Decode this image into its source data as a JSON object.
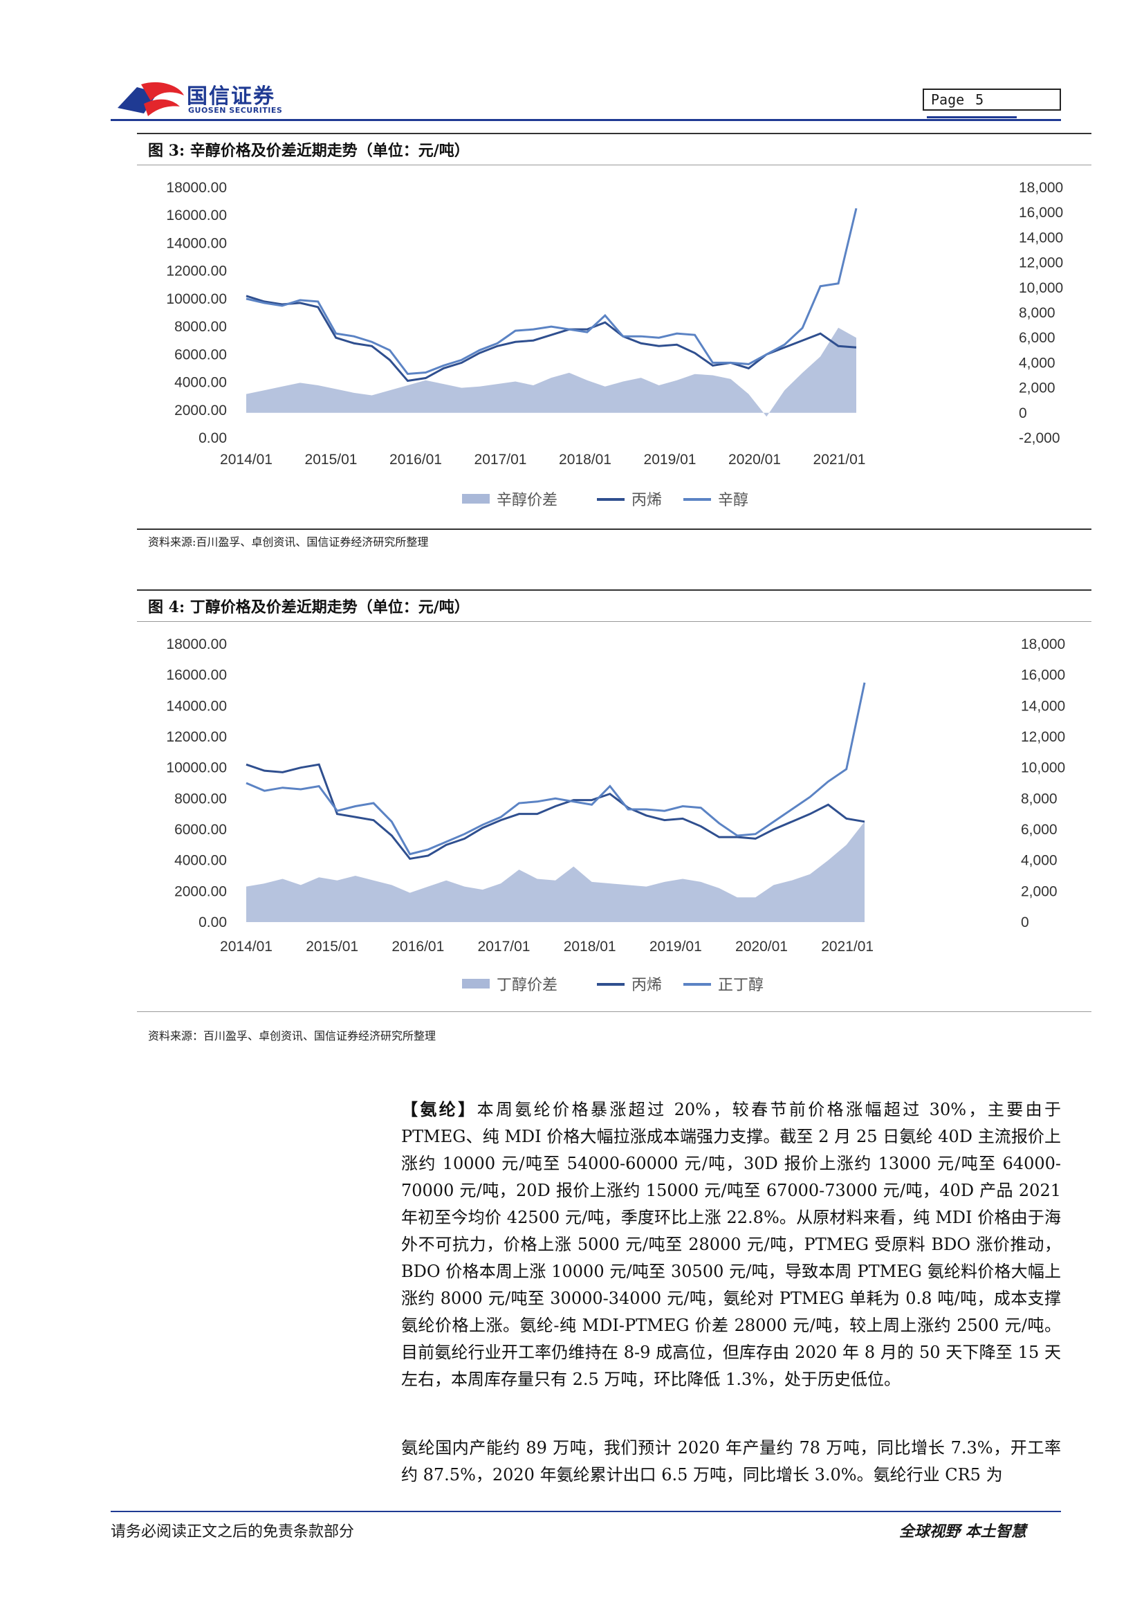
{
  "header": {
    "logo_cn": "国信证券",
    "logo_en": "GUOSEN SECURITIES",
    "page_label": "Page",
    "page_number": "5"
  },
  "figure3": {
    "title": "图 3:  辛醇价格及价差近期走势（单位：元/吨）",
    "source": "资料来源:百川盈孚、卓创资讯、国信证券经济研究所整理",
    "chart_data": {
      "type": "area+line",
      "x_ticks": [
        "2014/01",
        "2015/01",
        "2016/01",
        "2017/01",
        "2018/01",
        "2019/01",
        "2020/01",
        "2021/01"
      ],
      "left_axis": {
        "ticks": [
          "18000.00",
          "16000.00",
          "14000.00",
          "12000.00",
          "10000.00",
          "8000.00",
          "6000.00",
          "4000.00",
          "2000.00",
          "0.00"
        ],
        "range": [
          0,
          18000
        ]
      },
      "right_axis": {
        "ticks": [
          "18,000",
          "16,000",
          "14,000",
          "12,000",
          "10,000",
          "8,000",
          "6,000",
          "4,000",
          "2,000",
          "0",
          "-2,000"
        ],
        "range": [
          -2000,
          18000
        ]
      },
      "legend": [
        "辛醇价差",
        "丙烯",
        "辛醇"
      ],
      "series": [
        {
          "name": "辛醇价差",
          "kind": "area",
          "color": "#a9b8d8",
          "values": [
            1500,
            1800,
            2100,
            2400,
            2200,
            1900,
            1600,
            1400,
            1800,
            2200,
            2600,
            2300,
            2000,
            2100,
            2300,
            2500,
            2200,
            2800,
            3200,
            2600,
            2100,
            2500,
            2800,
            2200,
            2600,
            3100,
            3000,
            2700,
            1500,
            -300,
            1800,
            3200,
            4500,
            6800,
            6000
          ]
        },
        {
          "name": "丙烯",
          "kind": "line",
          "color": "#2f4f8f",
          "values": [
            10200,
            9800,
            9600,
            9700,
            9400,
            7200,
            6800,
            6600,
            5600,
            4100,
            4300,
            5000,
            5400,
            6100,
            6600,
            6900,
            7000,
            7400,
            7800,
            7800,
            8300,
            7300,
            6800,
            6600,
            6700,
            6100,
            5200,
            5400,
            5000,
            6000,
            6500,
            7000,
            7500,
            6600,
            6500
          ]
        },
        {
          "name": "辛醇",
          "kind": "line",
          "color": "#5b83c4",
          "values": [
            10000,
            9700,
            9500,
            9900,
            9800,
            7500,
            7300,
            6900,
            6300,
            4600,
            4700,
            5200,
            5600,
            6300,
            6800,
            7700,
            7800,
            8000,
            7800,
            7600,
            8800,
            7300,
            7300,
            7200,
            7500,
            7400,
            5400,
            5400,
            5300,
            6000,
            6700,
            7900,
            10900,
            11100,
            16500
          ]
        }
      ]
    }
  },
  "figure4": {
    "title": "图 4:  丁醇价格及价差近期走势（单位：元/吨）",
    "source": "资料来源：百川盈孚、卓创资讯、国信证券经济研究所整理",
    "chart_data": {
      "type": "area+line",
      "x_ticks": [
        "2014/01",
        "2015/01",
        "2016/01",
        "2017/01",
        "2018/01",
        "2019/01",
        "2020/01",
        "2021/01"
      ],
      "left_axis": {
        "ticks": [
          "18000.00",
          "16000.00",
          "14000.00",
          "12000.00",
          "10000.00",
          "8000.00",
          "6000.00",
          "4000.00",
          "2000.00",
          "0.00"
        ],
        "range": [
          0,
          18000
        ]
      },
      "right_axis": {
        "ticks": [
          "18,000",
          "16,000",
          "14,000",
          "12,000",
          "10,000",
          "8,000",
          "6,000",
          "4,000",
          "2,000",
          "0"
        ],
        "range": [
          0,
          18000
        ]
      },
      "legend": [
        "丁醇价差",
        "丙烯",
        "正丁醇"
      ],
      "series": [
        {
          "name": "丁醇价差",
          "kind": "area",
          "color": "#a9b8d8",
          "values": [
            2300,
            2500,
            2800,
            2400,
            2900,
            2700,
            3000,
            2700,
            2400,
            1900,
            2300,
            2700,
            2300,
            2100,
            2500,
            3400,
            2800,
            2700,
            3600,
            2600,
            2500,
            2400,
            2300,
            2600,
            2800,
            2600,
            2200,
            1600,
            1600,
            2400,
            2700,
            3100,
            4000,
            5000,
            6500
          ]
        },
        {
          "name": "丙烯",
          "kind": "line",
          "color": "#2f4f8f",
          "values": [
            10200,
            9800,
            9700,
            10000,
            10200,
            7000,
            6800,
            6600,
            5600,
            4100,
            4300,
            5000,
            5400,
            6100,
            6600,
            7000,
            7000,
            7500,
            7900,
            7900,
            8300,
            7400,
            6900,
            6600,
            6700,
            6200,
            5500,
            5500,
            5400,
            6000,
            6500,
            7000,
            7600,
            6700,
            6500
          ]
        },
        {
          "name": "正丁醇",
          "kind": "line",
          "color": "#5b83c4",
          "values": [
            9000,
            8500,
            8700,
            8600,
            8800,
            7200,
            7500,
            7700,
            6500,
            4400,
            4700,
            5200,
            5700,
            6300,
            6800,
            7700,
            7800,
            8000,
            7800,
            7600,
            8800,
            7300,
            7300,
            7200,
            7500,
            7400,
            6400,
            5600,
            5700,
            6500,
            7300,
            8100,
            9100,
            9900,
            15500
          ]
        }
      ]
    }
  },
  "article": {
    "para1_lead": "【氨纶】",
    "para1_text": "本周氨纶价格暴涨超过 20%，较春节前价格涨幅超过 30%，主要由于PTMEG、纯 MDI 价格大幅拉涨成本端强力支撑。截至 2 月 25 日氨纶 40D 主流报价上涨约 10000 元/吨至 54000-60000 元/吨，30D 报价上涨约 13000 元/吨至 64000-70000 元/吨，20D 报价上涨约 15000 元/吨至 67000-73000 元/吨，40D 产品 2021 年初至今均价 42500 元/吨，季度环比上涨 22.8%。从原材料来看，纯 MDI 价格由于海外不可抗力，价格上涨 5000 元/吨至 28000 元/吨，PTMEG 受原料 BDO 涨价推动，BDO 价格本周上涨 10000 元/吨至 30500 元/吨，导致本周 PTMEG 氨纶料价格大幅上涨约 8000 元/吨至 30000-34000 元/吨，氨纶对 PTMEG 单耗为 0.8 吨/吨，成本支撑氨纶价格上涨。氨纶-纯 MDI-PTMEG 价差 28000 元/吨，较上周上涨约 2500 元/吨。目前氨纶行业开工率仍维持在 8-9 成高位，但库存由 2020 年 8 月的 50 天下降至 15 天左右，本周库存量只有 2.5 万吨，环比降低 1.3%，处于历史低位。",
    "para2_text": "氨纶国内产能约 89 万吨，我们预计 2020 年产量约 78 万吨，同比增长 7.3%，开工率约 87.5%，2020 年氨纶累计出口 6.5 万吨，同比增长 3.0%。氨纶行业 CR5 为"
  },
  "footer": {
    "left": "请务必阅读正文之后的免责条款部分",
    "right": "全球视野   本土智慧"
  }
}
